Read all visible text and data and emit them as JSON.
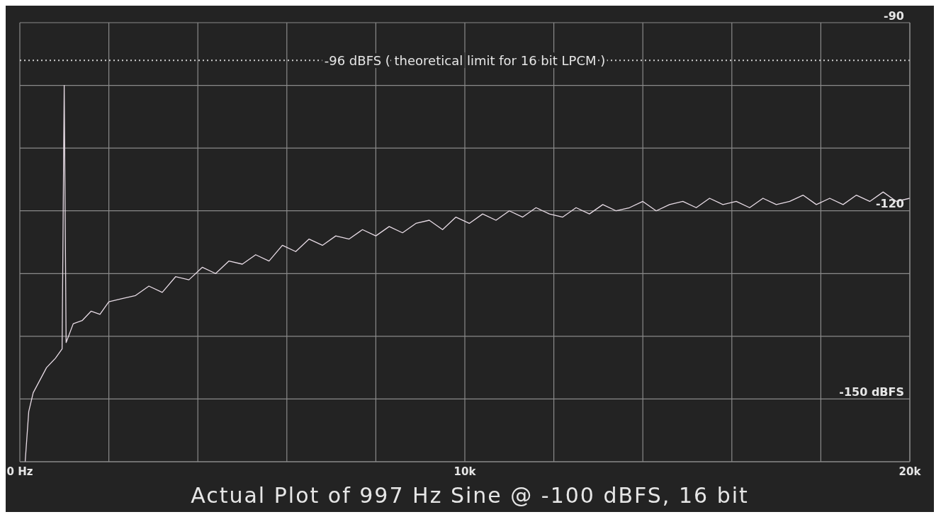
{
  "chart_data": {
    "type": "line",
    "title": "Actual Plot of 997 Hz Sine @ -100 dBFS, 16 bit",
    "x": [
      120,
      200,
      300,
      450,
      600,
      800,
      950,
      997,
      1040,
      1200,
      1400,
      1600,
      1800,
      2000,
      2300,
      2600,
      2900,
      3200,
      3500,
      3800,
      4100,
      4400,
      4700,
      5000,
      5300,
      5600,
      5900,
      6200,
      6500,
      6800,
      7100,
      7400,
      7700,
      8000,
      8300,
      8600,
      8900,
      9200,
      9500,
      9800,
      10100,
      10400,
      10700,
      11000,
      11300,
      11600,
      11900,
      12200,
      12500,
      12800,
      13100,
      13400,
      13700,
      14000,
      14300,
      14600,
      14900,
      15200,
      15500,
      15800,
      16100,
      16400,
      16700,
      17000,
      17300,
      17600,
      17900,
      18200,
      18500,
      18800,
      19100,
      19400,
      19700,
      20000
    ],
    "series": [
      {
        "color": "#e8dce6",
        "values": [
          -160,
          -152,
          -149,
          -147,
          -145,
          -143.5,
          -142,
          -100,
          -141,
          -138,
          -137.5,
          -136,
          -136.5,
          -134.5,
          -134,
          -133.5,
          -132,
          -133,
          -130.5,
          -131,
          -129,
          -130,
          -128,
          -128.5,
          -127,
          -128,
          -125.5,
          -126.5,
          -124.5,
          -125.5,
          -124,
          -124.5,
          -123,
          -124,
          -122.5,
          -123.5,
          -122,
          -121.5,
          -123,
          -121,
          -122,
          -120.5,
          -121.5,
          -120,
          -121,
          -119.5,
          -120.5,
          -121,
          -119.5,
          -120.5,
          -119,
          -120,
          -119.5,
          -118.5,
          -120,
          -119,
          -118.5,
          -119.5,
          -118,
          -119,
          -118.5,
          -119.5,
          -118,
          -119,
          -118.5,
          -117.5,
          -119,
          -118,
          -119,
          -117.5,
          -118.5,
          -117,
          -118.5,
          -118
        ]
      }
    ],
    "xlim": [
      0,
      20000
    ],
    "xticks": [
      {
        "value": 0,
        "label": "0 Hz"
      },
      {
        "value": 2000,
        "label": null
      },
      {
        "value": 4000,
        "label": null
      },
      {
        "value": 6000,
        "label": null
      },
      {
        "value": 8000,
        "label": null
      },
      {
        "value": 10000,
        "label": "10k"
      },
      {
        "value": 12000,
        "label": null
      },
      {
        "value": 14000,
        "label": null
      },
      {
        "value": 16000,
        "label": null
      },
      {
        "value": 18000,
        "label": null
      },
      {
        "value": 20000,
        "label": "20k"
      }
    ],
    "ylim": [
      -160,
      -90
    ],
    "yticks": [
      {
        "value": -160,
        "label": null
      },
      {
        "value": -150,
        "label": "-150 dBFS"
      },
      {
        "value": -140,
        "label": null
      },
      {
        "value": -130,
        "label": null
      },
      {
        "value": -120,
        "label": "-120"
      },
      {
        "value": -110,
        "label": null
      },
      {
        "value": -100,
        "label": null
      },
      {
        "value": -90,
        "label": "-90"
      }
    ],
    "grid": true,
    "marker": "none",
    "line_style": "solid",
    "ref_lines": [
      {
        "axis": "y",
        "value": -96,
        "label": "-96 dBFS ( theoretical limit for 16 bit LPCM )",
        "color": "#cfcfcf",
        "line_style": "dotted"
      }
    ]
  }
}
